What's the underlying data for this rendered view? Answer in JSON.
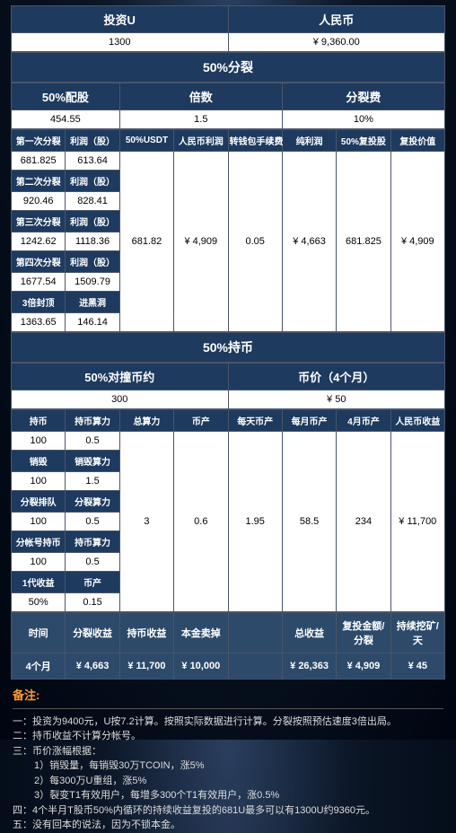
{
  "top": {
    "invest_u_label": "投资U",
    "invest_u_value": "1300",
    "rmb_label": "人民币",
    "rmb_value": "¥ 9,360.00"
  },
  "section1_title": "50%分裂",
  "sec1_headers": {
    "a": "50%配股",
    "b": "倍数",
    "c": "分裂费"
  },
  "sec1_vals": {
    "a": "454.55",
    "b": "1.5",
    "c": "10%"
  },
  "split_table": {
    "col_labels": [
      "第一次分裂",
      "利润（股）",
      "50%USDT",
      "人民币利润",
      "转钱包手续费",
      "纯利润",
      "50%复投股",
      "复投价值"
    ],
    "rows": [
      {
        "l1": "第一次分裂",
        "l2": "利润（股）",
        "v1": "681.825",
        "v2": "613.64"
      },
      {
        "l1": "第二次分裂",
        "l2": "利润（股）",
        "v1": "920.46",
        "v2": "828.41"
      },
      {
        "l1": "第三次分裂",
        "l2": "利润（股）",
        "v1": "1242.62",
        "v2": "1118.36"
      },
      {
        "l1": "第四次分裂",
        "l2": "利润（股）",
        "v1": "1677.54",
        "v2": "1509.79"
      },
      {
        "l1": "3倍封顶",
        "l2": "进黑洞",
        "v1": "1363.65",
        "v2": "146.14"
      }
    ],
    "merged": {
      "usdt": "681.82",
      "rmb_profit": "¥ 4,909",
      "fee": "0.05",
      "net": "¥ 4,663",
      "reinvest_share": "681.825",
      "reinvest_value": "¥ 4,909"
    }
  },
  "section2_title": "50%持币",
  "sec2_headers": {
    "a": "50%对撞币约",
    "b": "币价（4个月）"
  },
  "sec2_vals": {
    "a": "300",
    "b": "¥ 50"
  },
  "hold_table": {
    "cols": [
      "持币",
      "持币算力",
      "总算力",
      "币产",
      "每天币产",
      "每月币产",
      "4月币产",
      "人民币收益"
    ],
    "rows_left": [
      {
        "l1": "",
        "l2": "",
        "v1": "100",
        "v2": "0.5"
      },
      {
        "l1": "销毁",
        "l2": "销毁算力",
        "v1": "100",
        "v2": "1.5"
      },
      {
        "l1": "分裂排队",
        "l2": "分裂算力",
        "v1": "100",
        "v2": "0.5"
      },
      {
        "l1": "分帐号持币",
        "l2": "持币算力",
        "v1": "100",
        "v2": "0.5"
      },
      {
        "l1": "1代收益",
        "l2": "币产",
        "v1": "50%",
        "v2": "0.15"
      }
    ],
    "merged": {
      "total": "3",
      "coin": "0.6",
      "daily": "1.95",
      "monthly": "58.5",
      "fourmonth": "234",
      "rmb": "¥ 11,700"
    }
  },
  "summary": {
    "labels": [
      "时间",
      "分裂收益",
      "持币收益",
      "本金卖掉",
      "",
      "总收益",
      "复投金额/分裂",
      "持续挖矿/天"
    ],
    "values": [
      "4个月",
      "¥ 4,663",
      "¥ 11,700",
      "¥ 10,000",
      "",
      "¥ 26,363",
      "¥ 4,909",
      "¥ 45"
    ]
  },
  "notes": {
    "title": "备注:",
    "lines": [
      "一：投资为9400元，U按7.2计算。按照实际数据进行计算。分裂按照预估速度3倍出局。",
      "二：持币收益不计算分帐号。",
      "三：币价涨幅根据：",
      "1）销毁量，每销毁30万TCOIN，涨5%",
      "2）每300万U重组，涨5%",
      "3）裂变T1有效用户，每增多300个T1有效用户，涨0.5%",
      "四：4个半月T股币50%内循环的持续收益复投的681U最多可以有1300U约9360元。",
      "五：没有回本的说法，因为不锁本金。"
    ]
  }
}
